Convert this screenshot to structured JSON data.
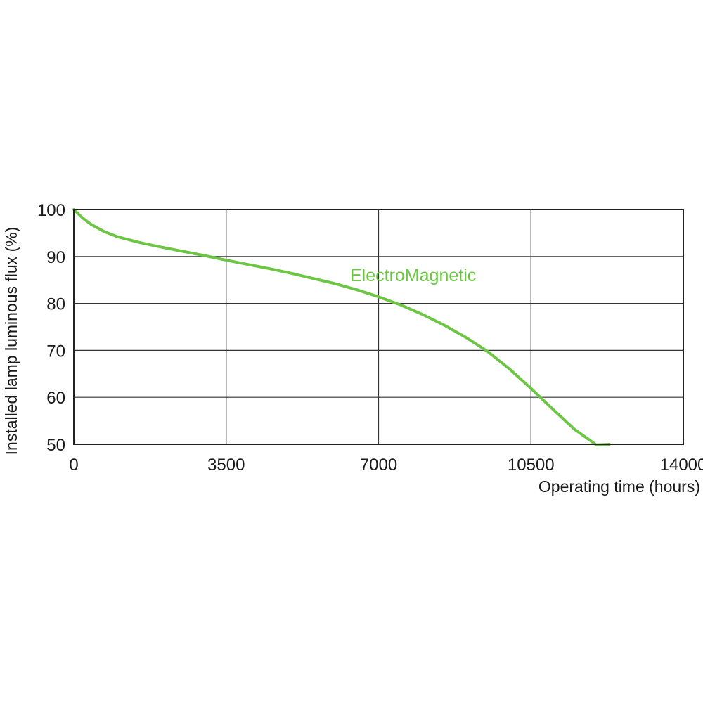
{
  "chart_data": {
    "type": "line",
    "title": "",
    "xlabel": "Operating time (hours)",
    "ylabel": "Installed lamp luminous flux  (%)",
    "xlim": [
      0,
      14000
    ],
    "ylim": [
      50,
      100
    ],
    "xticks": [
      0,
      3500,
      7000,
      10500,
      14000
    ],
    "yticks": [
      50,
      60,
      70,
      80,
      90,
      100
    ],
    "grid": true,
    "legend": "inline-label",
    "series": [
      {
        "name": "ElectroMagnetic",
        "color": "#6cc644",
        "x": [
          0,
          200,
          400,
          700,
          1000,
          1500,
          2000,
          2500,
          3000,
          3500,
          4000,
          4500,
          5000,
          5500,
          6000,
          6500,
          7000,
          7500,
          8000,
          8500,
          9000,
          9500,
          10000,
          10500,
          11000,
          11500,
          12000,
          12300
        ],
        "y": [
          100,
          98.2,
          96.8,
          95.3,
          94.2,
          93.0,
          92.0,
          91.1,
          90.2,
          89.2,
          88.3,
          87.4,
          86.4,
          85.3,
          84.2,
          82.9,
          81.4,
          79.7,
          77.7,
          75.4,
          72.8,
          69.8,
          66.1,
          61.9,
          57.5,
          53.2,
          49.9,
          50
        ]
      }
    ]
  }
}
